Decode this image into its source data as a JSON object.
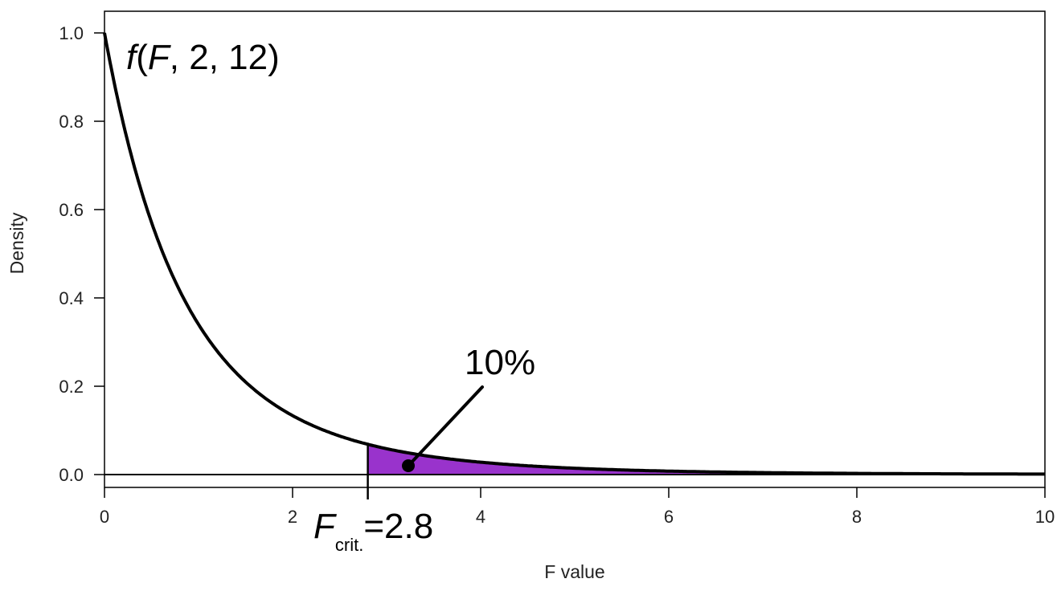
{
  "chart_data": {
    "type": "area",
    "xlabel": "F value",
    "ylabel": "Density",
    "xlim": [
      0,
      10
    ],
    "ylim": [
      0,
      1.0
    ],
    "x_ticks": [
      0,
      2,
      4,
      6,
      8,
      10
    ],
    "y_ticks": [
      0.0,
      0.2,
      0.4,
      0.6,
      0.8,
      1.0
    ],
    "x_tick_labels": [
      "0",
      "2",
      "4",
      "6",
      "8",
      "10"
    ],
    "y_tick_labels": [
      "0.0",
      "0.2",
      "0.4",
      "0.6",
      "0.8",
      "1.0"
    ],
    "distribution": {
      "label_f": "f",
      "label_open": "(",
      "label_F": "F",
      "label_rest": ", 2, 12)",
      "df1": 2,
      "df2": 12
    },
    "critical_value": {
      "x": 2.8,
      "label_main": "F",
      "label_sub": "crit.",
      "label_value": "=2.8"
    },
    "tail_area": {
      "label": "10%",
      "from_x": 2.8,
      "to_x": 10,
      "color": "#9933cc"
    },
    "curve_color": "#000000",
    "grid": false
  }
}
